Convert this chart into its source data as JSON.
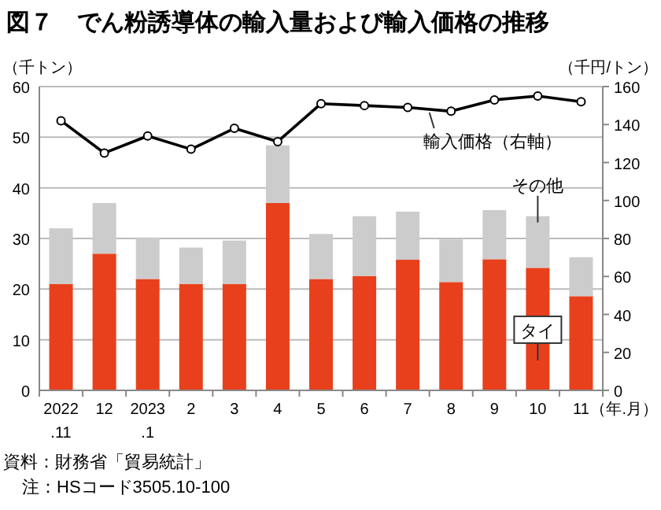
{
  "chart_data": {
    "type": "bar",
    "title": "図７　でん粉誘導体の輸入量および輸入価格の推移",
    "ylabel": "（千トン）",
    "y2label": "（千円/トン）",
    "xlabel": "（年.月）",
    "categories": [
      "2022\n.11",
      "12",
      "2023\n.1",
      "2",
      "3",
      "4",
      "5",
      "6",
      "7",
      "8",
      "9",
      "10",
      "11"
    ],
    "stacked": true,
    "grid": "y",
    "ylim": [
      0,
      60
    ],
    "yticks": [
      0,
      10,
      20,
      30,
      40,
      50,
      60
    ],
    "y2lim": [
      0,
      160
    ],
    "y2ticks": [
      0,
      20,
      40,
      60,
      80,
      100,
      120,
      140,
      160
    ],
    "series": [
      {
        "name": "タイ",
        "color": "#e8401c",
        "values": [
          21,
          27,
          22,
          21,
          21,
          37,
          22,
          22.6,
          25.8,
          21.4,
          25.9,
          24.2,
          18.6
        ]
      },
      {
        "name": "その他",
        "color": "#cccccc",
        "values": [
          11,
          10,
          8.2,
          7.2,
          8.6,
          11.4,
          8.9,
          11.8,
          9.5,
          8.4,
          9.7,
          10.2,
          7.7
        ]
      },
      {
        "name": "輸入価格（右軸）",
        "type": "line",
        "axis": "y2",
        "color": "#000000",
        "marker": "circle",
        "values": [
          142,
          125,
          134,
          127,
          138,
          131,
          151,
          150,
          149,
          147,
          153,
          155,
          152
        ]
      }
    ],
    "annotations": [
      "資料：財務省「貿易統計」",
      "注：HSコード3505.10-100"
    ]
  }
}
